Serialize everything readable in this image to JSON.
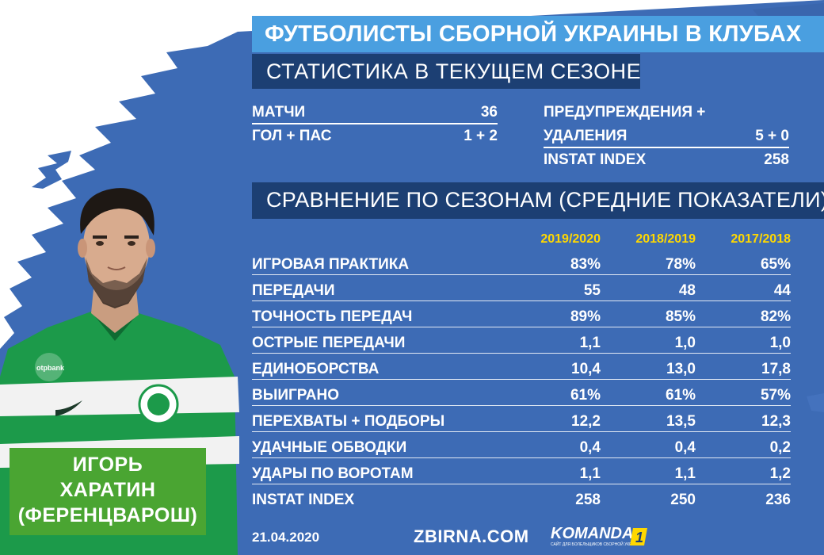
{
  "header": {
    "title": "ФУТБОЛИСТЫ СБОРНОЙ УКРАИНЫ В КЛУБАХ",
    "subtitle": "СТАТИСТИКА В ТЕКУЩЕМ СЕЗОНЕ"
  },
  "season_stats": {
    "matches": {
      "label": "МАТЧИ",
      "value": "36"
    },
    "goals_assists": {
      "label": "ГОЛ + ПАС",
      "value": "1 + 2"
    },
    "cards_label_line1": "ПРЕДУПРЕЖДЕНИЯ +",
    "cards": {
      "label": "УДАЛЕНИЯ",
      "value": "5 + 0"
    },
    "instat": {
      "label": "INSTAT INDEX",
      "value": "258"
    }
  },
  "comparison": {
    "title": "СРАВНЕНИЕ ПО СЕЗОНАМ (СРЕДНИЕ ПОКАЗАТЕЛИ)",
    "seasons": [
      "2019/2020",
      "2018/2019",
      "2017/2018"
    ],
    "rows": [
      {
        "label": "ИГРОВАЯ ПРАКТИКА",
        "values": [
          "83%",
          "78%",
          "65%"
        ]
      },
      {
        "label": "ПЕРЕДАЧИ",
        "values": [
          "55",
          "48",
          "44"
        ]
      },
      {
        "label": "ТОЧНОСТЬ ПЕРЕДАЧ",
        "values": [
          "89%",
          "85%",
          "82%"
        ]
      },
      {
        "label": "ОСТРЫЕ ПЕРЕДАЧИ",
        "values": [
          "1,1",
          "1,0",
          "1,0"
        ]
      },
      {
        "label": "ЕДИНОБОРСТВА",
        "values": [
          "10,4",
          "13,0",
          "17,8"
        ]
      },
      {
        "label": "ВЫИГРАНО",
        "values": [
          "61%",
          "61%",
          "57%"
        ]
      },
      {
        "label": "ПЕРЕХВАТЫ + ПОДБОРЫ",
        "values": [
          "12,2",
          "13,5",
          "12,3"
        ]
      },
      {
        "label": "УДАЧНЫЕ ОБВОДКИ",
        "values": [
          "0,4",
          "0,4",
          "0,2"
        ]
      },
      {
        "label": "УДАРЫ ПО ВОРОТАМ",
        "values": [
          "1,1",
          "1,1",
          "1,2"
        ]
      },
      {
        "label": "INSTAT INDEX",
        "values": [
          "258",
          "250",
          "236"
        ]
      }
    ]
  },
  "player": {
    "first_name": "ИГОРЬ",
    "last_name": "ХАРАТИН",
    "club": "(ФЕРЕНЦВАРОШ)",
    "shirt_sponsor": "otpbank"
  },
  "footer": {
    "date": "21.04.2020",
    "site": "ZBIRNA.COM",
    "logo_text": "KOMANDA",
    "logo_number": "1",
    "logo_tagline": "САЙТ ДЛЯ БОЛЕЛЬЩИКОВ СБОРНОЙ УКРАИНЫ"
  },
  "colors": {
    "background_blue": "#3d6bb5",
    "title_bar": "#4a9fe0",
    "dark_bar": "#1c3f73",
    "season_header": "#ffd800",
    "name_box": "#4aa532",
    "shirt_green": "#1c9a4a"
  }
}
